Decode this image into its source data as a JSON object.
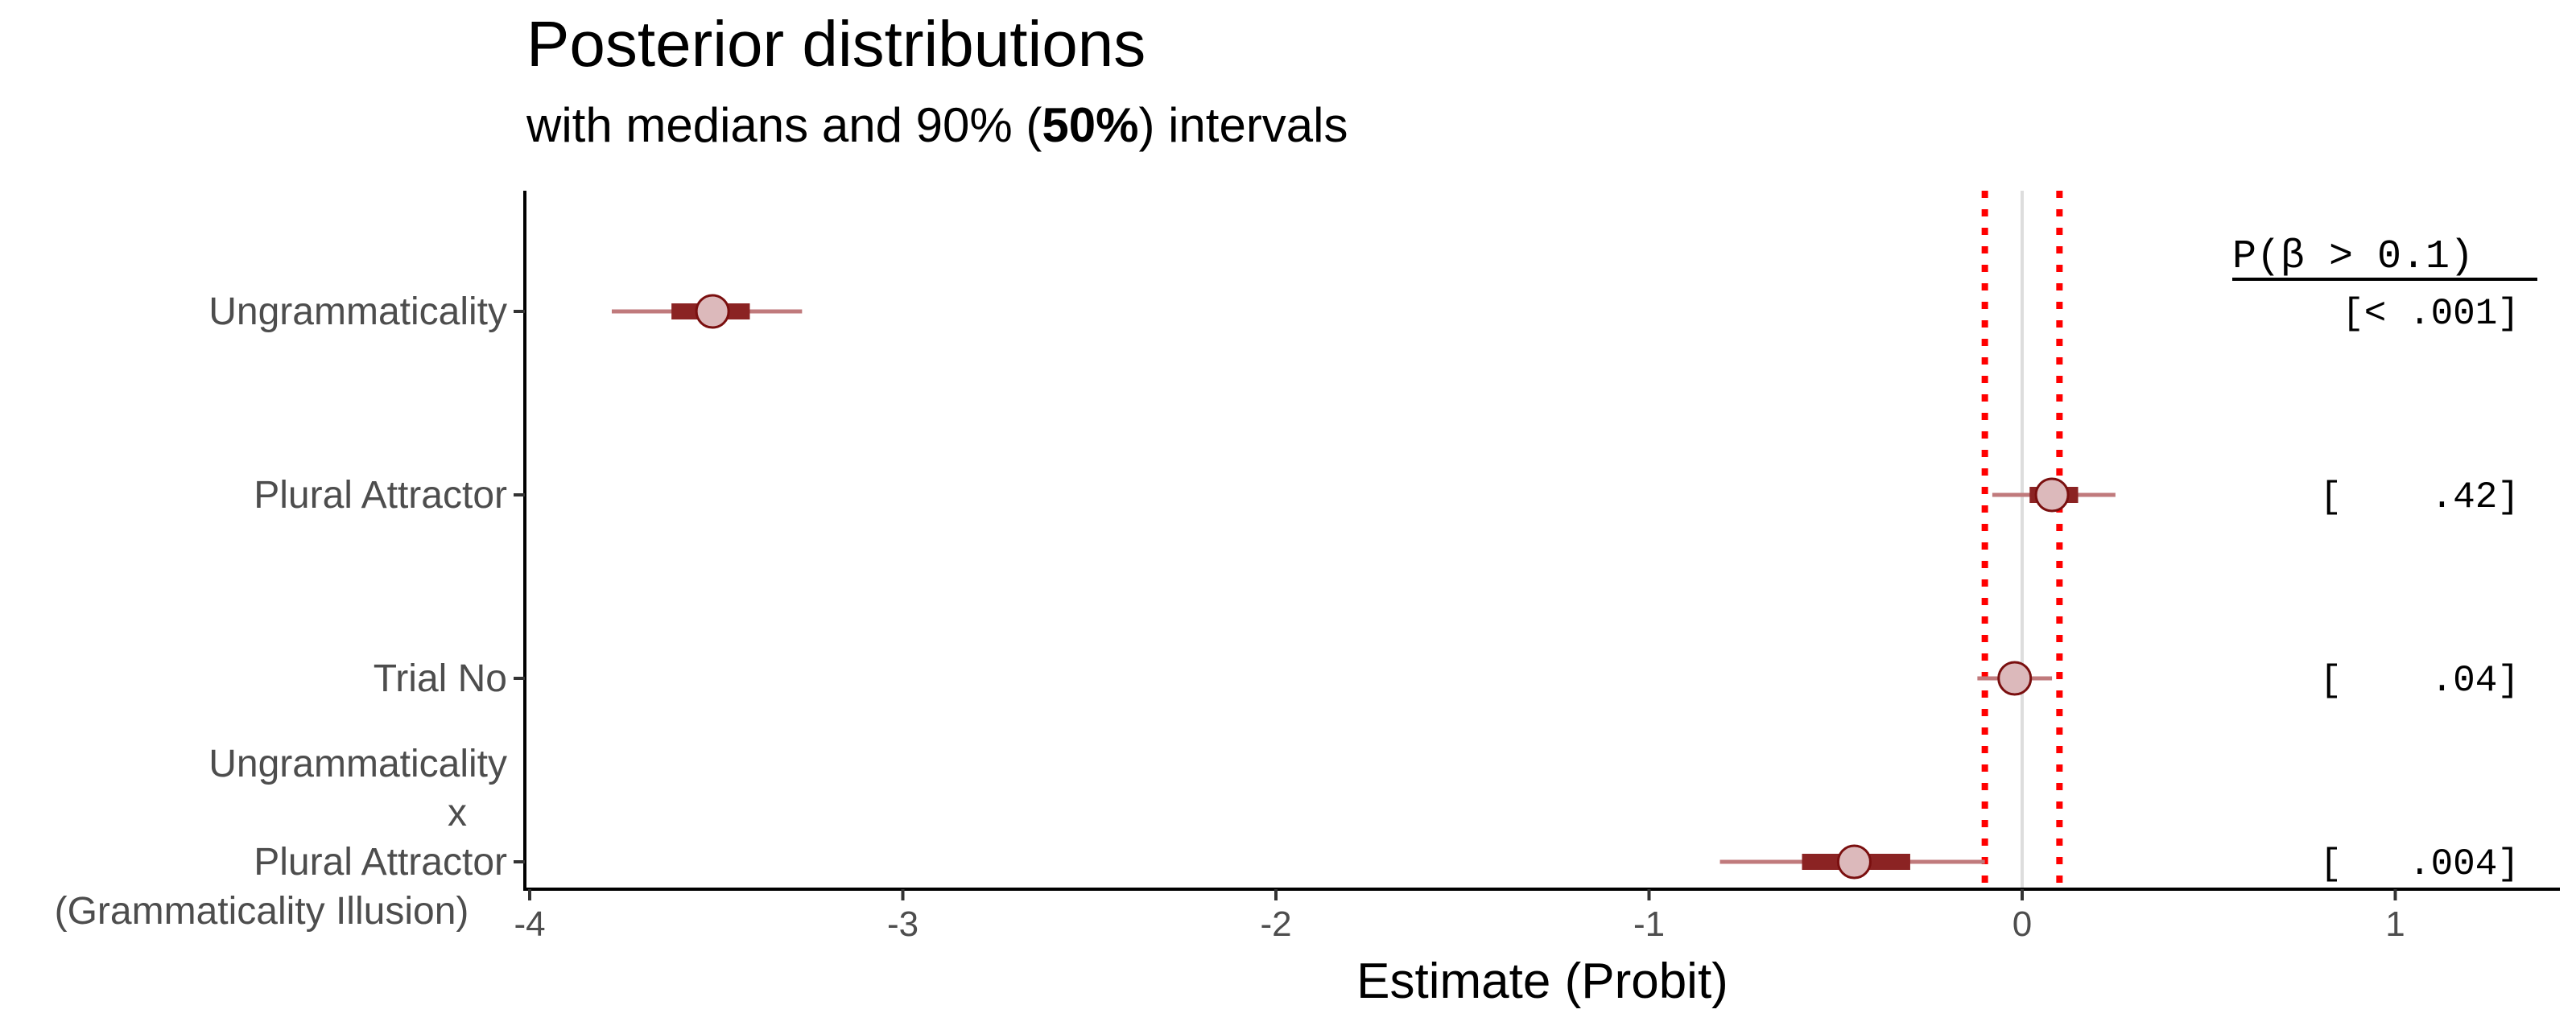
{
  "chart_data": {
    "type": "interval",
    "title": "Posterior distributions",
    "subtitle_parts": [
      {
        "text": "with medians and 90% (",
        "bold": false
      },
      {
        "text": "50%",
        "bold": true
      },
      {
        "text": ") intervals",
        "bold": false
      }
    ],
    "xlabel": "Estimate (Probit)",
    "xlim": [
      -4.0,
      1.45
    ],
    "xticks": [
      -4,
      -3,
      -2,
      -1,
      0,
      1
    ],
    "xtick_labels": [
      "-4",
      "-3",
      "-2",
      "-1",
      "0",
      "1"
    ],
    "reference_lines": {
      "zero": 0,
      "rope": [
        -0.1,
        0.1
      ]
    },
    "prob_header": "P(β > 0.1)",
    "series": [
      {
        "label_lines": [
          "Ungrammaticality"
        ],
        "median": -3.51,
        "ci90": [
          -3.78,
          -3.27
        ],
        "ci50": [
          -3.62,
          -3.41
        ],
        "prob_label": "[< .001]"
      },
      {
        "label_lines": [
          "Plural Attractor"
        ],
        "median": 0.08,
        "ci90": [
          -0.08,
          0.25
        ],
        "ci50": [
          0.02,
          0.15
        ],
        "prob_label": "[    .42]"
      },
      {
        "label_lines": [
          "Trial No"
        ],
        "median": -0.02,
        "ci90": [
          -0.12,
          0.08
        ],
        "ci50": [
          -0.05,
          0.01
        ],
        "prob_label": "[    .04]"
      },
      {
        "label_lines": [
          "Ungrammaticality",
          "x",
          "Plural Attractor",
          "(Grammaticality Illusion)"
        ],
        "median": -0.45,
        "ci90": [
          -0.81,
          -0.1
        ],
        "ci50": [
          -0.59,
          -0.3
        ],
        "prob_label": "[   .004]"
      }
    ],
    "colors": {
      "thick": "#8b2323",
      "thin": "#c07a7c",
      "point_fill": "#dcb9bb",
      "point_stroke": "#7a0f0f",
      "rope": "#ff0000",
      "zero": "#dddddd"
    }
  }
}
